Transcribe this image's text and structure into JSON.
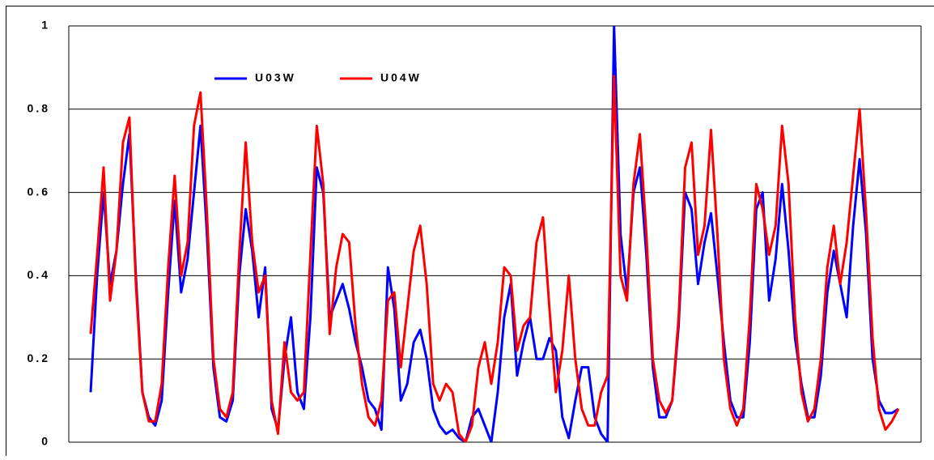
{
  "chart_data": {
    "type": "line",
    "categories": [
      null,
      null,
      null,
      null,
      null,
      null,
      null,
      null,
      null,
      null,
      null,
      null,
      null,
      null,
      null,
      null,
      null,
      null,
      null,
      null,
      null,
      null,
      null,
      null,
      null,
      null,
      null,
      null,
      null,
      null,
      null,
      null,
      null,
      null,
      null,
      null,
      null,
      null,
      null,
      null,
      null,
      null,
      null,
      null,
      null,
      null,
      null,
      null,
      null,
      null,
      null,
      null,
      null,
      null,
      null,
      null,
      null,
      null,
      null,
      null,
      null,
      null,
      null,
      null,
      null,
      null,
      null,
      null,
      null,
      null,
      null,
      null,
      null,
      null,
      null,
      null,
      null,
      null,
      null,
      null,
      null,
      null,
      null,
      null,
      null,
      null,
      null,
      null,
      null,
      null,
      null,
      null,
      null,
      null,
      null,
      null,
      null,
      null,
      null,
      null,
      null,
      null,
      null,
      null,
      null,
      null,
      null,
      null,
      null,
      null,
      null,
      null,
      null,
      null,
      null,
      null,
      null,
      null,
      null,
      null,
      null,
      null,
      null,
      null,
      null,
      null
    ],
    "series": [
      {
        "name": "U03W",
        "color": "#0000ff",
        "values": [
          0.12,
          0.4,
          0.6,
          0.38,
          0.46,
          0.62,
          0.74,
          0.4,
          0.12,
          0.06,
          0.04,
          0.1,
          0.36,
          0.58,
          0.36,
          0.44,
          0.6,
          0.76,
          0.5,
          0.18,
          0.06,
          0.05,
          0.1,
          0.4,
          0.56,
          0.46,
          0.3,
          0.42,
          0.08,
          0.03,
          0.2,
          0.3,
          0.12,
          0.08,
          0.3,
          0.66,
          0.6,
          0.3,
          0.34,
          0.38,
          0.32,
          0.24,
          0.18,
          0.1,
          0.08,
          0.03,
          0.42,
          0.32,
          0.1,
          0.14,
          0.24,
          0.27,
          0.2,
          0.08,
          0.04,
          0.02,
          0.03,
          0.01,
          0,
          0.06,
          0.08,
          0.04,
          0,
          0.12,
          0.3,
          0.38,
          0.16,
          0.24,
          0.3,
          0.2,
          0.2,
          0.25,
          0.22,
          0.06,
          0.01,
          0.1,
          0.18,
          0.18,
          0.06,
          0.02,
          0,
          1,
          0.5,
          0.36,
          0.6,
          0.66,
          0.45,
          0.18,
          0.06,
          0.06,
          0.1,
          0.28,
          0.6,
          0.56,
          0.38,
          0.48,
          0.55,
          0.4,
          0.24,
          0.1,
          0.06,
          0.06,
          0.24,
          0.56,
          0.6,
          0.34,
          0.44,
          0.62,
          0.46,
          0.25,
          0.14,
          0.06,
          0.06,
          0.16,
          0.36,
          0.46,
          0.38,
          0.3,
          0.52,
          0.68,
          0.5,
          0.2,
          0.1,
          0.07,
          0.07,
          0.08
        ]
      },
      {
        "name": "U04W",
        "color": "#ff0000",
        "values": [
          0.26,
          0.45,
          0.66,
          0.34,
          0.46,
          0.72,
          0.78,
          0.38,
          0.12,
          0.05,
          0.05,
          0.14,
          0.42,
          0.64,
          0.4,
          0.48,
          0.76,
          0.84,
          0.55,
          0.2,
          0.08,
          0.06,
          0.12,
          0.45,
          0.72,
          0.48,
          0.36,
          0.4,
          0.1,
          0.02,
          0.24,
          0.12,
          0.1,
          0.12,
          0.45,
          0.76,
          0.62,
          0.26,
          0.42,
          0.5,
          0.48,
          0.28,
          0.14,
          0.06,
          0.04,
          0.1,
          0.34,
          0.36,
          0.18,
          0.32,
          0.46,
          0.52,
          0.38,
          0.14,
          0.1,
          0.14,
          0.12,
          0.02,
          0,
          0.04,
          0.18,
          0.24,
          0.14,
          0.24,
          0.42,
          0.4,
          0.22,
          0.28,
          0.3,
          0.48,
          0.54,
          0.32,
          0.12,
          0.22,
          0.4,
          0.2,
          0.08,
          0.04,
          0.04,
          0.12,
          0.16,
          0.88,
          0.4,
          0.34,
          0.62,
          0.74,
          0.5,
          0.2,
          0.1,
          0.07,
          0.1,
          0.3,
          0.66,
          0.72,
          0.45,
          0.52,
          0.75,
          0.5,
          0.2,
          0.08,
          0.04,
          0.08,
          0.3,
          0.62,
          0.56,
          0.45,
          0.52,
          0.76,
          0.62,
          0.3,
          0.12,
          0.05,
          0.08,
          0.2,
          0.42,
          0.52,
          0.38,
          0.48,
          0.64,
          0.8,
          0.55,
          0.25,
          0.08,
          0.03,
          0.05,
          0.08
        ]
      }
    ],
    "ylim": [
      0,
      1
    ],
    "yticks": [
      0,
      0.2,
      0.4,
      0.6,
      0.8,
      1
    ],
    "grid": true
  }
}
